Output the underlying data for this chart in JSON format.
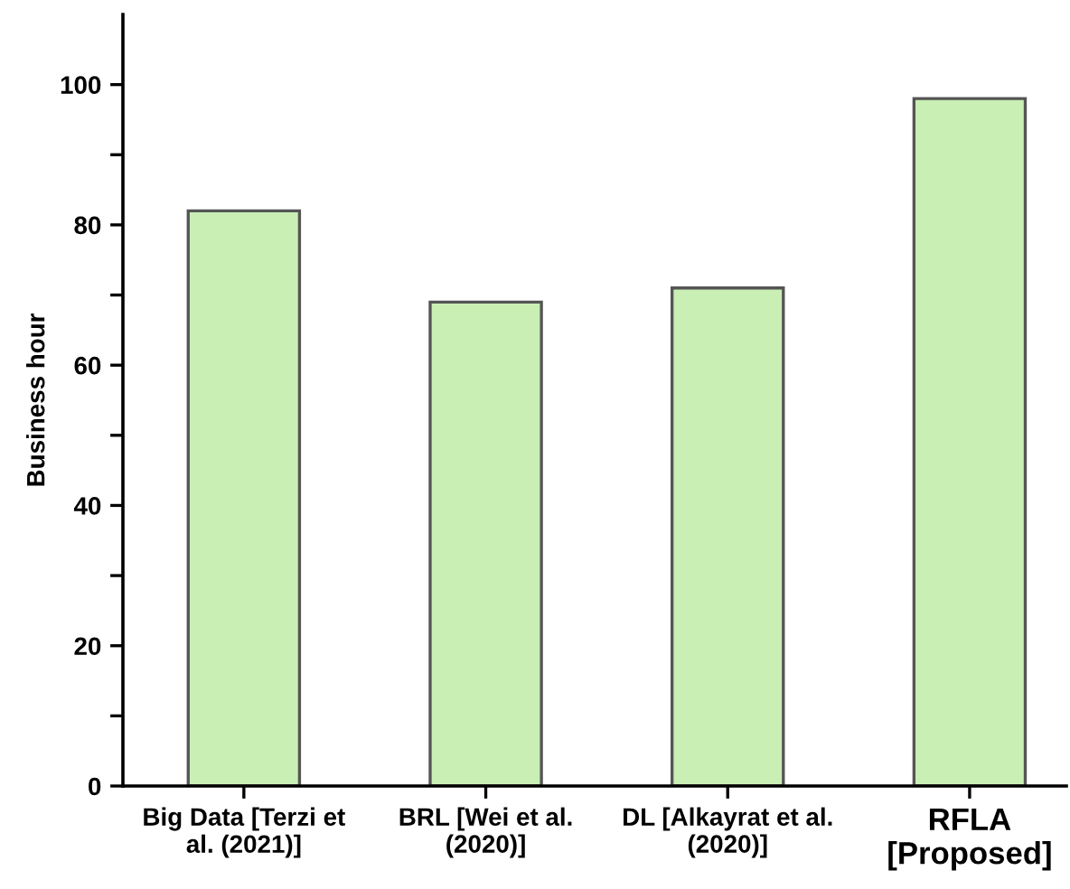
{
  "chart_data": {
    "type": "bar",
    "ylabel": "Business hour",
    "categories": [
      "Big Data [Terzi et\nal. (2021)]",
      "BRL [Wei et al.\n(2020)]",
      "DL [Alkayrat et al.\n(2020)]",
      "RFLA\n[Proposed]"
    ],
    "values": [
      82,
      69,
      71,
      98
    ],
    "color": "#c9efb4",
    "ylim": [
      0,
      110
    ],
    "yticks": [
      0,
      {
        "value": 10,
        "label": null
      },
      20,
      {
        "value": 30,
        "label": null
      },
      40,
      {
        "value": 50,
        "label": null
      },
      60,
      {
        "value": 70,
        "label": null
      },
      80,
      {
        "value": 90,
        "label": null
      },
      100
    ],
    "grid": false,
    "legend": false
  }
}
